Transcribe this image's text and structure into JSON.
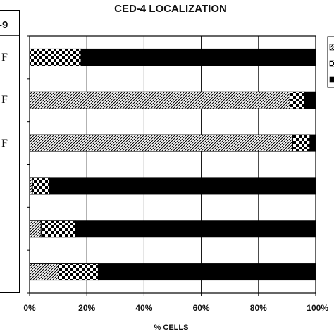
{
  "side_panel": {
    "label": "-9"
  },
  "chart_data": {
    "type": "bar",
    "orientation": "horizontal",
    "stacked": true,
    "title": "CED-4 LOCALIZATION",
    "xlabel": "% CELLS",
    "ylabel": "",
    "xlim": [
      0,
      100
    ],
    "x_ticks": [
      "0%",
      "20%",
      "40%",
      "60%",
      "80%",
      "100%"
    ],
    "grid": true,
    "legend": "right, partially cropped",
    "categories": [
      "",
      "",
      "",
      "",
      "",
      ""
    ],
    "series": [
      {
        "pattern": "diagonal-hatch",
        "values": [
          0,
          91,
          92,
          1,
          4,
          10
        ]
      },
      {
        "pattern": "checkered",
        "values": [
          18,
          5,
          6,
          6,
          12,
          14
        ]
      },
      {
        "pattern": "solid",
        "values": [
          82,
          4,
          2,
          93,
          84,
          76
        ]
      }
    ],
    "colors": {
      "fill": "#000000",
      "background": "#ffffff",
      "grid": "#000000"
    }
  }
}
